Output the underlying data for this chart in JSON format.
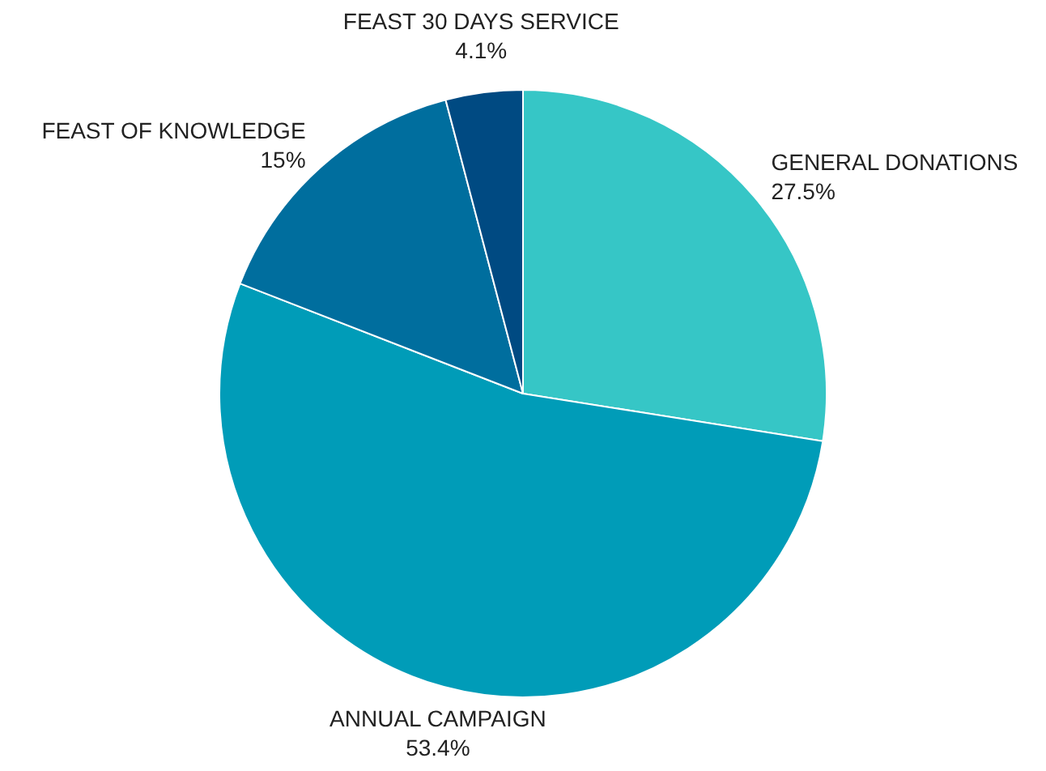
{
  "chart_data": {
    "type": "pie",
    "categories": [
      "GENERAL DONATIONS",
      "ANNUAL CAMPAIGN",
      "FEAST OF KNOWLEDGE",
      "FEAST 30 DAYS SERVICE"
    ],
    "values": [
      27.5,
      53.4,
      15,
      4.1
    ],
    "value_labels": [
      "27.5%",
      "53.4%",
      "15%",
      "4.1%"
    ],
    "colors": [
      "#36c6c6",
      "#009cb8",
      "#006e9e",
      "#004a82"
    ],
    "legend": false
  }
}
